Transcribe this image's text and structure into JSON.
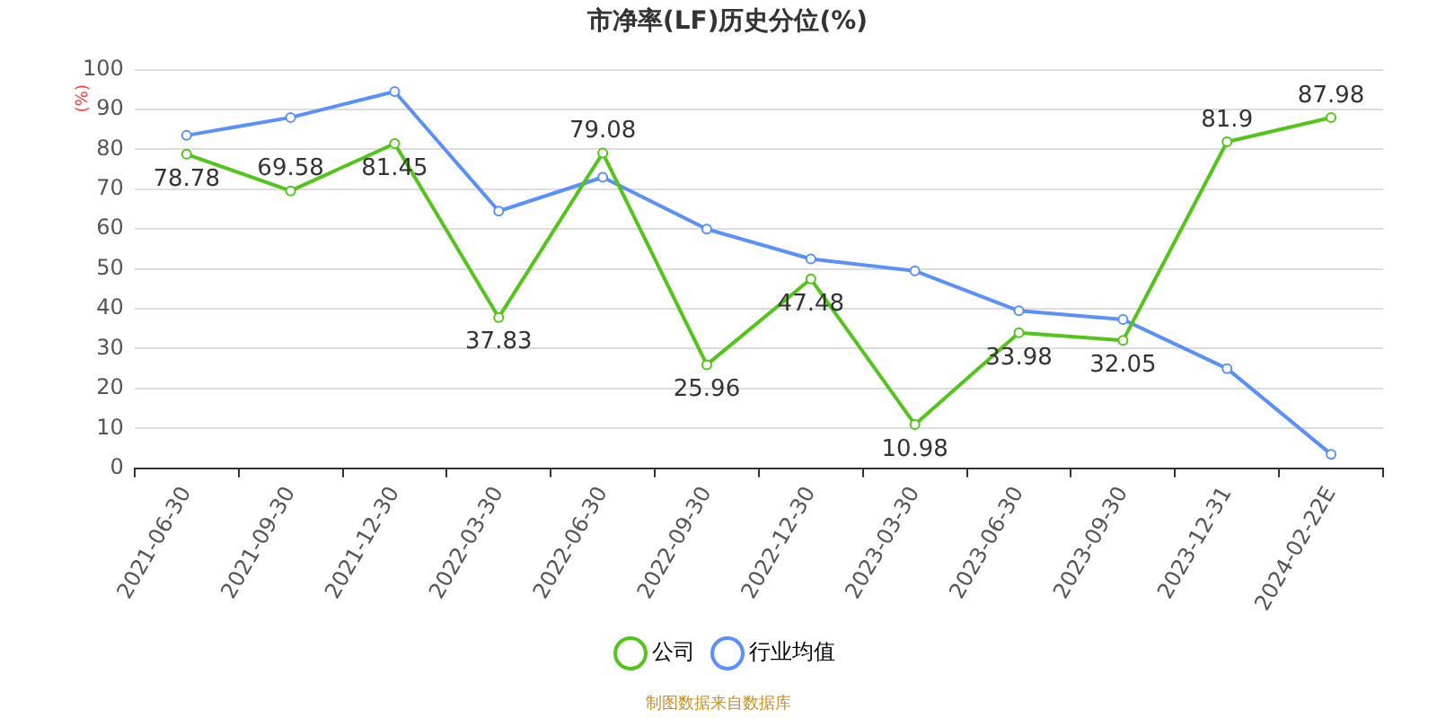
{
  "chart_data": {
    "type": "line",
    "title": "市净率(LF)历史分位(%)",
    "ylabel": "(%)",
    "categories": [
      "2021-06-30",
      "2021-09-30",
      "2021-12-30",
      "2022-03-30",
      "2022-06-30",
      "2022-09-30",
      "2022-12-30",
      "2023-03-30",
      "2023-06-30",
      "2023-09-30",
      "2023-12-31",
      "2024-02-22E"
    ],
    "series": [
      {
        "name": "公司",
        "color": "#52c41a",
        "values": [
          78.78,
          69.58,
          81.45,
          37.83,
          79.08,
          25.96,
          47.48,
          10.98,
          33.98,
          32.05,
          81.9,
          87.98
        ],
        "value_labels": [
          "78.78",
          "69.58",
          "81.45",
          "37.83",
          "79.08",
          "25.96",
          "47.48",
          "10.98",
          "33.98",
          "32.05",
          "81.9",
          "87.98"
        ]
      },
      {
        "name": "行业均值",
        "color": "#5b8ff9",
        "values": [
          83.5,
          88,
          94.5,
          64.5,
          73,
          60,
          52.5,
          49.5,
          39.5,
          37.3,
          25,
          3.5
        ]
      }
    ],
    "ylim": [
      0,
      100
    ],
    "yticks": [
      0,
      10,
      20,
      30,
      40,
      50,
      60,
      70,
      80,
      90,
      100
    ],
    "grid": "y",
    "legend": "bottom",
    "marker": "circle",
    "line_style": "solid",
    "annotations": [
      "制图数据来自数据库"
    ]
  }
}
